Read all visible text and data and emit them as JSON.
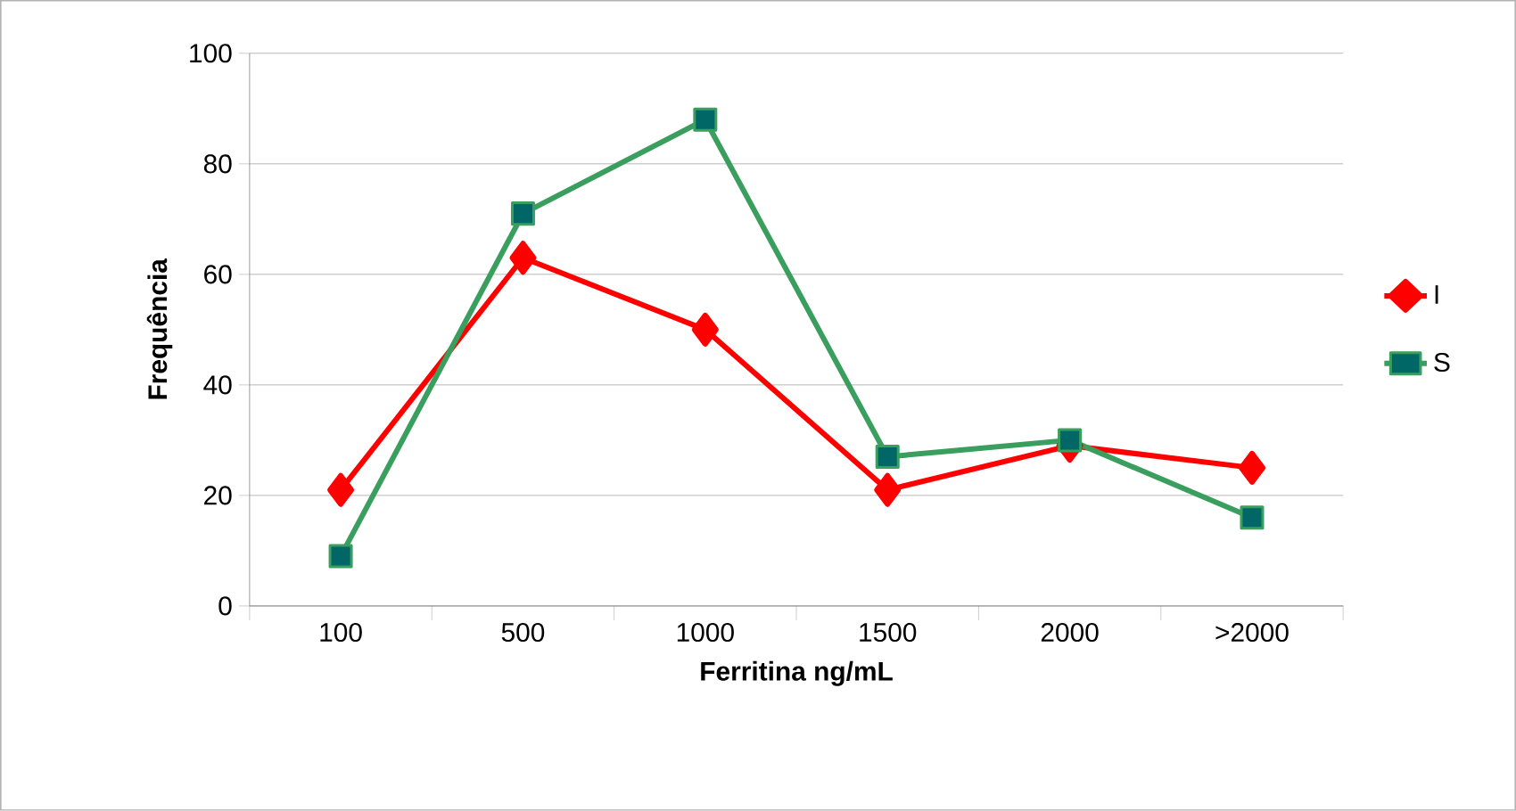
{
  "chart_data": {
    "type": "line",
    "xlabel": "Ferritina ng/mL",
    "ylabel": "Frequência",
    "categories": [
      "100",
      "500",
      "1000",
      "1500",
      "2000",
      ">2000"
    ],
    "series": [
      {
        "name": "I",
        "color": "#ff0000",
        "marker": "diamond",
        "values": [
          21,
          63,
          50,
          21,
          29,
          25
        ]
      },
      {
        "name": "S",
        "color": "#3a9e5e",
        "marker": "square",
        "values": [
          9,
          71,
          88,
          27,
          30,
          16
        ]
      }
    ],
    "ylim": [
      0,
      100
    ],
    "yticks": [
      0,
      20,
      40,
      60,
      80,
      100
    ],
    "grid": "y",
    "legend": "right",
    "line_style": "solid"
  }
}
